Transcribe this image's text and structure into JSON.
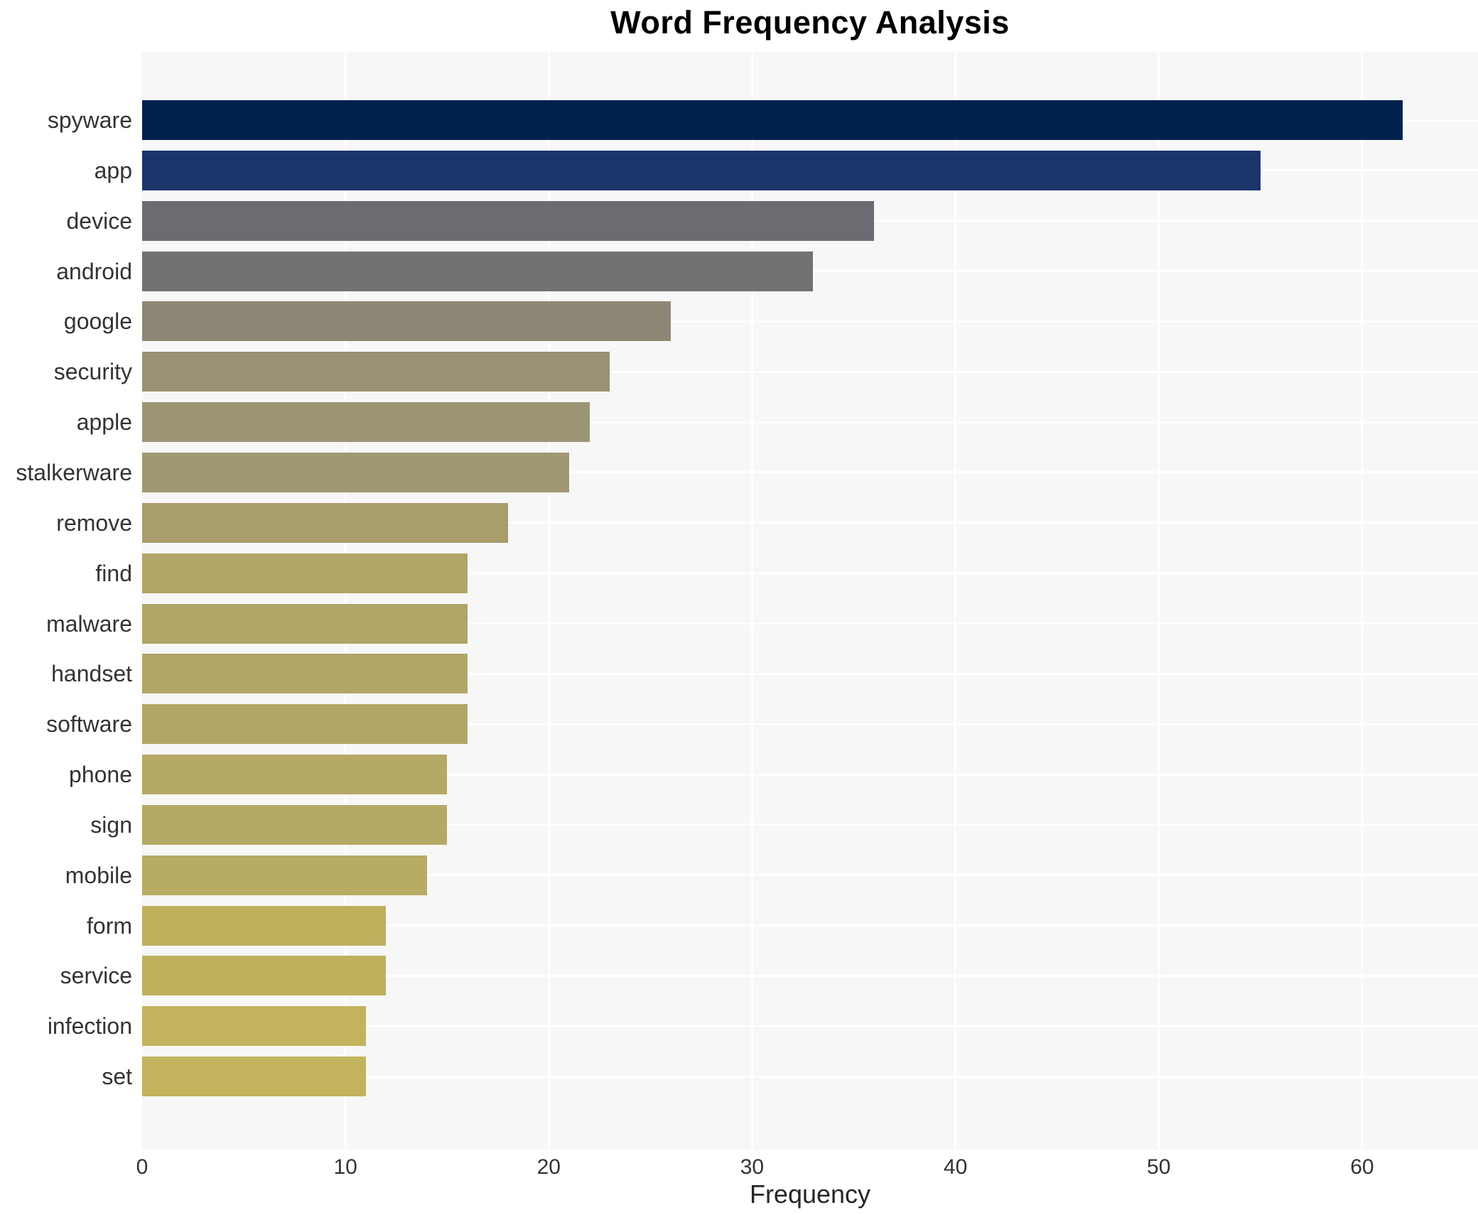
{
  "chart_data": {
    "type": "bar",
    "orientation": "horizontal",
    "title": "Word Frequency Analysis",
    "xlabel": "Frequency",
    "ylabel": "",
    "categories": [
      "spyware",
      "app",
      "device",
      "android",
      "google",
      "security",
      "apple",
      "stalkerware",
      "remove",
      "find",
      "malware",
      "handset",
      "software",
      "phone",
      "sign",
      "mobile",
      "form",
      "service",
      "infection",
      "set"
    ],
    "values": [
      62,
      55,
      36,
      33,
      26,
      23,
      22,
      21,
      18,
      16,
      16,
      16,
      16,
      15,
      15,
      14,
      12,
      12,
      11,
      11
    ],
    "bar_colors": [
      "#00224e",
      "#1b356b",
      "#6a6c72",
      "#727275",
      "#8d8876",
      "#989173",
      "#9c9573",
      "#a09870",
      "#a99d6c",
      "#b1a567",
      "#b1a567",
      "#b2a667",
      "#b2a667",
      "#b5a965",
      "#b5a965",
      "#b8ab63",
      "#bfb05e",
      "#bfb05e",
      "#c3b35c",
      "#c3b35c"
    ],
    "xticks": [
      0,
      10,
      20,
      30,
      40,
      50,
      60
    ],
    "xlim": [
      0,
      65.7
    ],
    "grid": true,
    "legend": false,
    "plot_background": "#f7f7f7",
    "grid_color": "#ffffff"
  }
}
